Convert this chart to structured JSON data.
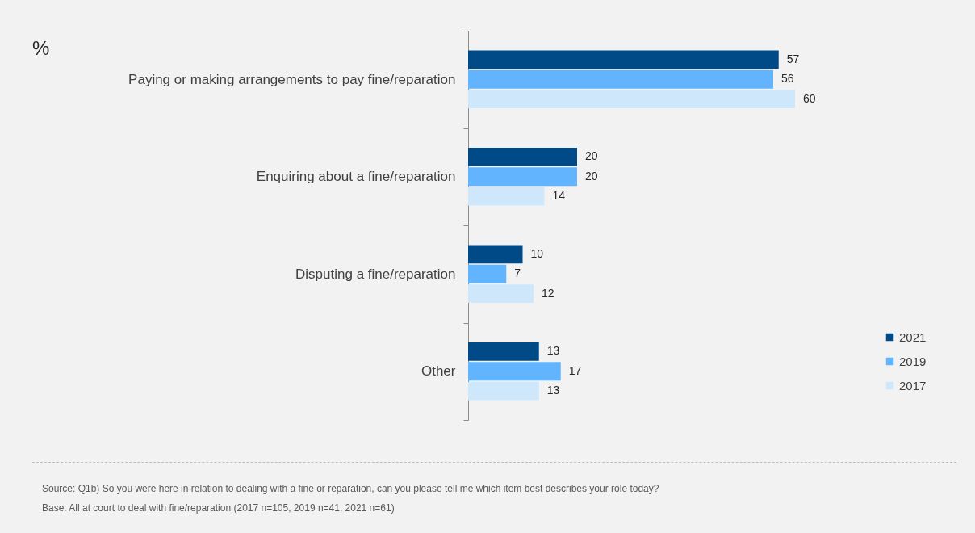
{
  "chart_data": {
    "type": "bar",
    "orientation": "horizontal",
    "categories": [
      "Paying or making arrangements to pay fine/reparation",
      "Enquiring about a fine/reparation",
      "Disputing a fine/reparation",
      "Other"
    ],
    "series": [
      {
        "name": "2021",
        "color": "#004b87",
        "values": [
          57,
          20,
          10,
          13
        ]
      },
      {
        "name": "2019",
        "color": "#63b4ff",
        "values": [
          56,
          20,
          7,
          17
        ]
      },
      {
        "name": "2017",
        "color": "#cfe7fb",
        "values": [
          60,
          14,
          12,
          13
        ]
      }
    ],
    "data_labels": true,
    "legend": "right",
    "grid": false,
    "annotations": [
      "%",
      "Source: Q1b) So you were here in relation to dealing with a fine or reparation, can you please tell me which item best describes your role today?",
      "Base: All at court to deal with fine/reparation (2017 n=105, 2019 n=41, 2021 n=61)"
    ]
  }
}
